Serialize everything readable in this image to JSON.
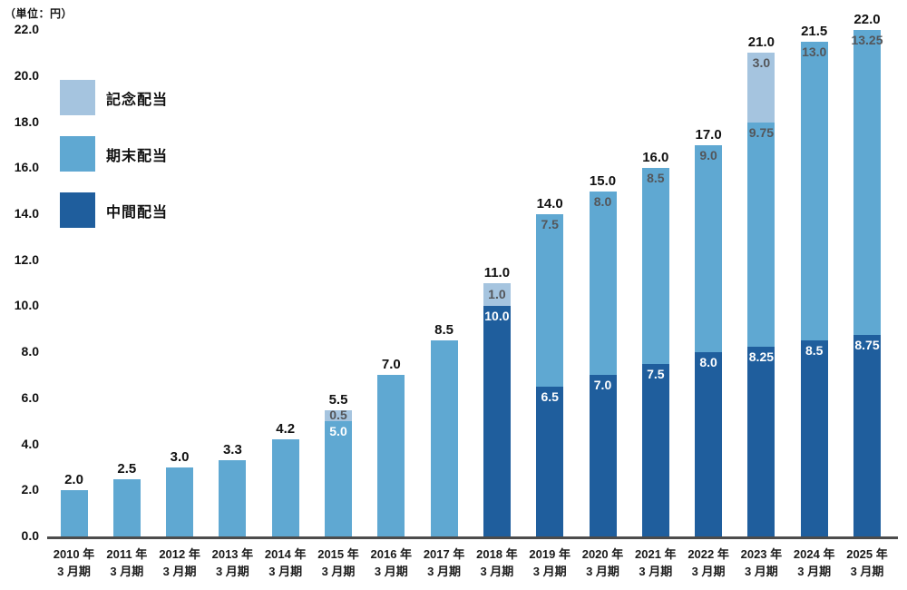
{
  "chart_data": {
    "type": "bar",
    "stacked": true,
    "unit_label": "（単位：円）",
    "ylim": [
      0,
      22
    ],
    "ytick_step": 2,
    "yticks": [
      "0.0",
      "2.0",
      "4.0",
      "6.0",
      "8.0",
      "10.0",
      "12.0",
      "14.0",
      "16.0",
      "18.0",
      "20.0",
      "22.0"
    ],
    "grid": false,
    "legend_position": "inside-top-left",
    "legend": [
      {
        "label": "記念配当",
        "color": "#a5c4df"
      },
      {
        "label": "期末配当",
        "color": "#5fa8d2"
      },
      {
        "label": "中間配当",
        "color": "#1f5e9d"
      }
    ],
    "colors": {
      "kinen": "#a5c4df",
      "kimatsu": "#5fa8d2",
      "chukan": "#1f5e9d",
      "axis": "#4c4c4c",
      "total_label": "#111111",
      "segment_label_white": "#ffffff",
      "segment_label_gray": "#54565a"
    },
    "categories": [
      {
        "line1": "2010 年",
        "line2": "3 月期"
      },
      {
        "line1": "2011 年",
        "line2": "3 月期"
      },
      {
        "line1": "2012 年",
        "line2": "3 月期"
      },
      {
        "line1": "2013 年",
        "line2": "3 月期"
      },
      {
        "line1": "2014 年",
        "line2": "3 月期"
      },
      {
        "line1": "2015 年",
        "line2": "3 月期"
      },
      {
        "line1": "2016 年",
        "line2": "3 月期"
      },
      {
        "line1": "2017 年",
        "line2": "3 月期"
      },
      {
        "line1": "2018 年",
        "line2": "3 月期"
      },
      {
        "line1": "2019 年",
        "line2": "3 月期"
      },
      {
        "line1": "2020 年",
        "line2": "3 月期"
      },
      {
        "line1": "2021 年",
        "line2": "3 月期"
      },
      {
        "line1": "2022 年",
        "line2": "3 月期"
      },
      {
        "line1": "2023 年",
        "line2": "3 月期"
      },
      {
        "line1": "2024 年",
        "line2": "3 月期"
      },
      {
        "line1": "2025 年",
        "line2": "3 月期"
      }
    ],
    "bars": [
      {
        "year": "2010",
        "total": "2.0",
        "segments": [
          {
            "series": "期末配当",
            "value": 2.0
          }
        ]
      },
      {
        "year": "2011",
        "total": "2.5",
        "segments": [
          {
            "series": "期末配当",
            "value": 2.5
          }
        ]
      },
      {
        "year": "2012",
        "total": "3.0",
        "segments": [
          {
            "series": "期末配当",
            "value": 3.0
          }
        ]
      },
      {
        "year": "2013",
        "total": "3.3",
        "segments": [
          {
            "series": "期末配当",
            "value": 3.3
          }
        ]
      },
      {
        "year": "2014",
        "total": "4.2",
        "segments": [
          {
            "series": "期末配当",
            "value": 4.2
          }
        ]
      },
      {
        "year": "2015",
        "total": "5.5",
        "segments": [
          {
            "series": "期末配当",
            "value": 5.0,
            "label": "5.0",
            "label_color": "white"
          },
          {
            "series": "記念配当",
            "value": 0.5,
            "label": "0.5",
            "label_color": "gray"
          }
        ]
      },
      {
        "year": "2016",
        "total": "7.0",
        "segments": [
          {
            "series": "期末配当",
            "value": 7.0
          }
        ]
      },
      {
        "year": "2017",
        "total": "8.5",
        "segments": [
          {
            "series": "期末配当",
            "value": 8.5
          }
        ]
      },
      {
        "year": "2018",
        "total": "11.0",
        "segments": [
          {
            "series": "中間配当",
            "value": 10.0,
            "label": "10.0",
            "label_color": "white"
          },
          {
            "series": "記念配当",
            "value": 1.0,
            "label": "1.0",
            "label_color": "gray"
          }
        ]
      },
      {
        "year": "2019",
        "total": "14.0",
        "segments": [
          {
            "series": "中間配当",
            "value": 6.5,
            "label": "6.5",
            "label_color": "white"
          },
          {
            "series": "期末配当",
            "value": 7.5,
            "label": "7.5",
            "label_color": "gray"
          }
        ]
      },
      {
        "year": "2020",
        "total": "15.0",
        "segments": [
          {
            "series": "中間配当",
            "value": 7.0,
            "label": "7.0",
            "label_color": "white"
          },
          {
            "series": "期末配当",
            "value": 8.0,
            "label": "8.0",
            "label_color": "gray"
          }
        ]
      },
      {
        "year": "2021",
        "total": "16.0",
        "segments": [
          {
            "series": "中間配当",
            "value": 7.5,
            "label": "7.5",
            "label_color": "white"
          },
          {
            "series": "期末配当",
            "value": 8.5,
            "label": "8.5",
            "label_color": "gray"
          }
        ]
      },
      {
        "year": "2022",
        "total": "17.0",
        "segments": [
          {
            "series": "中間配当",
            "value": 8.0,
            "label": "8.0",
            "label_color": "white"
          },
          {
            "series": "期末配当",
            "value": 9.0,
            "label": "9.0",
            "label_color": "gray"
          }
        ]
      },
      {
        "year": "2023",
        "total": "21.0",
        "segments": [
          {
            "series": "中間配当",
            "value": 8.25,
            "label": "8.25",
            "label_color": "white"
          },
          {
            "series": "期末配当",
            "value": 9.75,
            "label": "9.75",
            "label_color": "gray"
          },
          {
            "series": "記念配当",
            "value": 3.0,
            "label": "3.0",
            "label_color": "gray"
          }
        ]
      },
      {
        "year": "2024",
        "total": "21.5",
        "segments": [
          {
            "series": "中間配当",
            "value": 8.5,
            "label": "8.5",
            "label_color": "white"
          },
          {
            "series": "期末配当",
            "value": 13.0,
            "label": "13.0",
            "label_color": "gray"
          }
        ]
      },
      {
        "year": "2025",
        "total": "22.0",
        "segments": [
          {
            "series": "中間配当",
            "value": 8.75,
            "label": "8.75",
            "label_color": "white"
          },
          {
            "series": "期末配当",
            "value": 13.25,
            "label": "13.25",
            "label_color": "gray"
          }
        ]
      }
    ]
  }
}
